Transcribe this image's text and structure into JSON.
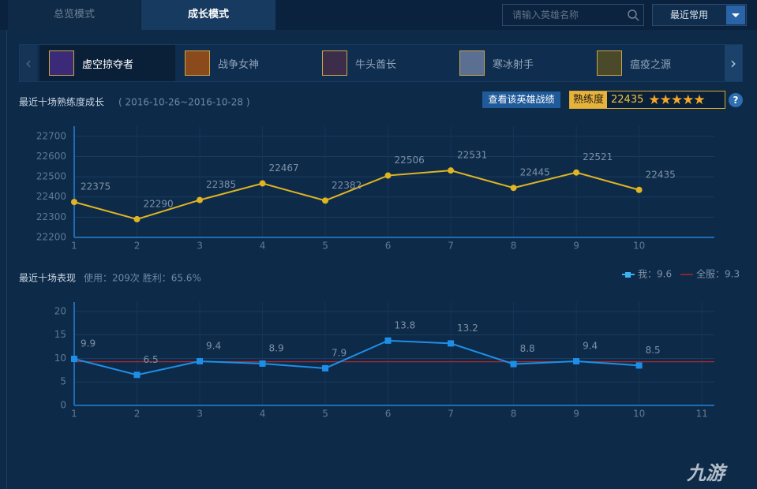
{
  "tabs": [
    "总览模式",
    "成长模式"
  ],
  "search_placeholder": "请输入英雄名称",
  "dropdown": "最近常用",
  "heroes": [
    "虚空掠夺者",
    "战争女神",
    "牛头酋长",
    "寒冰射手",
    "瘟疫之源"
  ],
  "mastery": {
    "button": "查看该英雄战绩",
    "label": "熟练度",
    "value": 22435
  },
  "help": "?",
  "watermark": "九游",
  "chart_data": [
    {
      "type": "line",
      "title": "最近十场熟练度成长",
      "subtitle": "( 2016-10-26~2016-10-28 )",
      "x": [
        1,
        2,
        3,
        4,
        5,
        6,
        7,
        8,
        9,
        10
      ],
      "values": [
        22375,
        22290,
        22385,
        22467,
        22382,
        22506,
        22531,
        22445,
        22521,
        22435
      ],
      "color": "#e0b422",
      "xlim": [
        1,
        11.2
      ],
      "xticks": [
        1,
        2,
        3,
        4,
        5,
        6,
        7,
        8,
        9,
        10
      ],
      "ylim": [
        22200,
        22750
      ],
      "yticks": [
        22200,
        22300,
        22400,
        22500,
        22600,
        22700
      ],
      "grid": true
    },
    {
      "type": "line",
      "title": "最近十场表现",
      "subtitle": "使用：209次 胜利：65.6%",
      "x": [
        1,
        2,
        3,
        4,
        5,
        6,
        7,
        8,
        9,
        10
      ],
      "series": [
        {
          "name": "我：9.6",
          "color": "#1e8fe6",
          "values": [
            9.9,
            6.5,
            9.4,
            8.9,
            7.9,
            13.8,
            13.2,
            8.8,
            9.4,
            8.5
          ]
        }
      ],
      "reference": {
        "name": "全服：9.3",
        "value": 9.3,
        "color": "#b0252a"
      },
      "xlim": [
        1,
        11.2
      ],
      "xticks": [
        1,
        2,
        3,
        4,
        5,
        6,
        7,
        8,
        9,
        10,
        11
      ],
      "ylim": [
        0,
        22
      ],
      "yticks": [
        0,
        5,
        10,
        15,
        20
      ],
      "grid": true
    }
  ]
}
